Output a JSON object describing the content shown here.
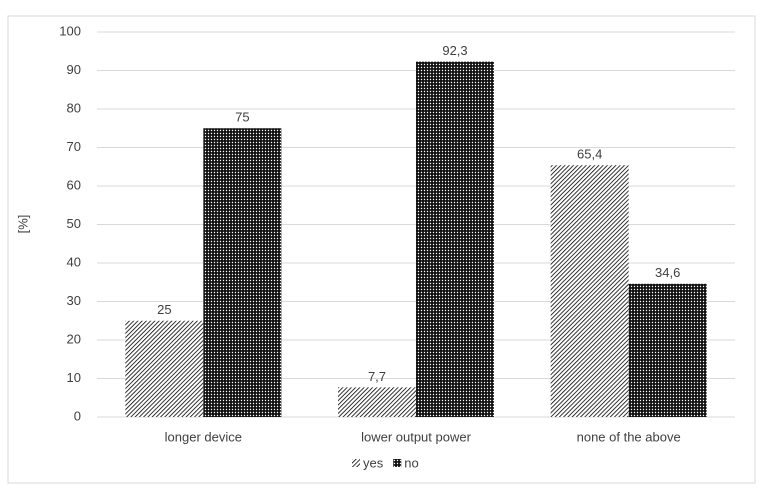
{
  "chart_data": {
    "type": "bar",
    "y_label": "[%]",
    "categories": [
      "longer device",
      "lower output power",
      "none of the above"
    ],
    "series": [
      {
        "name": "yes",
        "color": "#000000",
        "pattern": "diagonal",
        "values": [
          25,
          7.7,
          65.4
        ],
        "value_labels": [
          "25",
          "7,7",
          "65,4"
        ]
      },
      {
        "name": "no",
        "color": "#000000",
        "pattern": "dots",
        "values": [
          75,
          92.3,
          34.6
        ],
        "value_labels": [
          "75",
          "92,3",
          "34,6"
        ]
      }
    ],
    "ylim": [
      0,
      100
    ],
    "yticks": [
      0,
      10,
      20,
      30,
      40,
      50,
      60,
      70,
      80,
      90,
      100
    ],
    "grid": true,
    "legend": "bottom"
  }
}
